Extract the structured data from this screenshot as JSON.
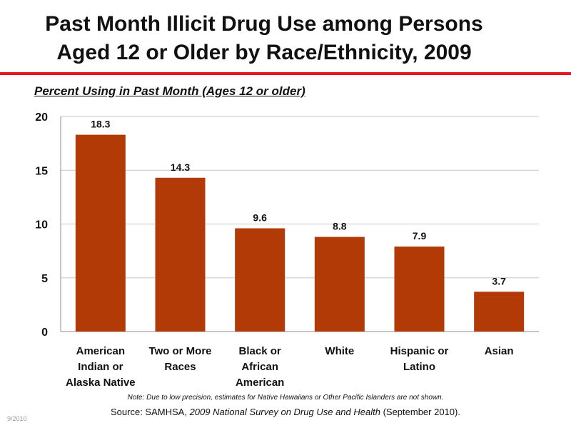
{
  "title_line1": "Past Month Illicit Drug Use among Persons",
  "title_line2": "Aged 12 or Older by Race/Ethnicity, 2009",
  "accent_color": "#e01b22",
  "bar_color": "#b13a07",
  "chart_data": {
    "type": "bar",
    "title": "Past Month Illicit Drug Use among Persons Aged 12 or Older by Race/Ethnicity, 2009",
    "ylabel": "Percent Using in Past Month (Ages 12 or older)",
    "xlabel": "",
    "ylim": [
      0,
      20
    ],
    "yticks": [
      0,
      5,
      10,
      15,
      20
    ],
    "grid": true,
    "categories": [
      {
        "lines": [
          "American",
          "Indian or",
          "Alaska Native"
        ]
      },
      {
        "lines": [
          "Two or More",
          "Races"
        ]
      },
      {
        "lines": [
          "Black or",
          "African",
          "American"
        ]
      },
      {
        "lines": [
          "White"
        ]
      },
      {
        "lines": [
          "Hispanic or",
          "Latino"
        ]
      },
      {
        "lines": [
          "Asian"
        ]
      }
    ],
    "values": [
      18.3,
      14.3,
      9.6,
      8.8,
      7.9,
      3.7
    ],
    "value_labels": [
      "18.3",
      "14.3",
      "9.6",
      "8.8",
      "7.9",
      "3.7"
    ]
  },
  "note": "Note: Due to low precision, estimates for Native Hawaiians or Other Pacific Islanders are not shown.",
  "source": {
    "prefix": "Source:  SAMHSA, ",
    "italic": "2009 National Survey on Drug Use and Health",
    "suffix": " (September 2010)."
  },
  "date_stamp": "9/2010"
}
